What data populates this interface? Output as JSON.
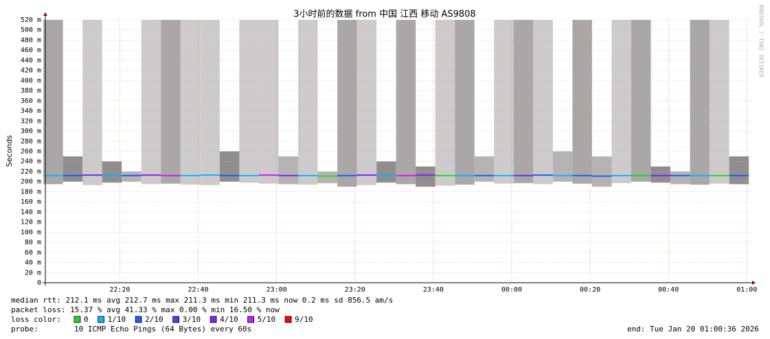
{
  "chart_data": {
    "type": "smoke",
    "title": "3小时前的数据 from 中国 江西 移动 AS9808",
    "y_label": "Seconds",
    "watermark": "RRDTOOL / TOBI OETIKER",
    "xlim": [
      "22:01",
      "01:01"
    ],
    "xticks": [
      "22:20",
      "22:40",
      "23:00",
      "23:20",
      "23:40",
      "00:00",
      "00:20",
      "00:40",
      "01:00"
    ],
    "ylim": [
      0,
      0.52
    ],
    "yticks": [
      0,
      {
        "value": 0.02,
        "label": "20 m"
      },
      {
        "value": 0.04,
        "label": "40 m"
      },
      {
        "value": 0.06,
        "label": "60 m"
      },
      {
        "value": 0.08,
        "label": "80 m"
      },
      {
        "value": 0.1,
        "label": "100 m"
      },
      {
        "value": 0.12,
        "label": "120 m"
      },
      {
        "value": 0.14,
        "label": "140 m"
      },
      {
        "value": 0.16,
        "label": "160 m"
      },
      {
        "value": 0.18,
        "label": "180 m"
      },
      {
        "value": 0.2,
        "label": "200 m"
      },
      {
        "value": 0.22,
        "label": "220 m"
      },
      {
        "value": 0.24,
        "label": "240 m"
      },
      {
        "value": 0.26,
        "label": "260 m"
      },
      {
        "value": 0.28,
        "label": "280 m"
      },
      {
        "value": 0.3,
        "label": "300 m"
      },
      {
        "value": 0.32,
        "label": "320 m"
      },
      {
        "value": 0.34,
        "label": "340 m"
      },
      {
        "value": 0.36,
        "label": "360 m"
      },
      {
        "value": 0.38,
        "label": "380 m"
      },
      {
        "value": 0.4,
        "label": "400 m"
      },
      {
        "value": 0.42,
        "label": "420 m"
      },
      {
        "value": 0.44,
        "label": "440 m"
      },
      {
        "value": 0.46,
        "label": "460 m"
      },
      {
        "value": 0.48,
        "label": "480 m"
      },
      {
        "value": 0.5,
        "label": "500 m"
      },
      {
        "value": 0.52,
        "label": "520 m"
      }
    ],
    "grid": true,
    "x": [
      "22:03",
      "22:08",
      "22:13",
      "22:18",
      "22:23",
      "22:28",
      "22:33",
      "22:38",
      "22:43",
      "22:48",
      "22:53",
      "22:58",
      "23:03",
      "23:08",
      "23:13",
      "23:18",
      "23:23",
      "23:28",
      "23:33",
      "23:38",
      "23:43",
      "23:48",
      "23:53",
      "23:58",
      "00:03",
      "00:08",
      "00:13",
      "00:18",
      "00:23",
      "00:28",
      "00:33",
      "00:38",
      "00:43",
      "00:48",
      "00:53",
      "00:58"
    ],
    "smoke_max": [
      0.52,
      0.25,
      0.52,
      0.24,
      0.22,
      0.52,
      0.52,
      0.52,
      0.52,
      0.26,
      0.52,
      0.52,
      0.25,
      0.52,
      0.22,
      0.52,
      0.52,
      0.24,
      0.52,
      0.23,
      0.52,
      0.52,
      0.25,
      0.52,
      0.52,
      0.52,
      0.26,
      0.52,
      0.25,
      0.52,
      0.52,
      0.23,
      0.22,
      0.52,
      0.52,
      0.25
    ],
    "smoke_min": [
      0.195,
      0.2,
      0.193,
      0.198,
      0.2,
      0.195,
      0.196,
      0.194,
      0.193,
      0.2,
      0.198,
      0.196,
      0.195,
      0.194,
      0.197,
      0.19,
      0.193,
      0.198,
      0.195,
      0.19,
      0.192,
      0.194,
      0.2,
      0.196,
      0.197,
      0.195,
      0.2,
      0.196,
      0.19,
      0.197,
      0.2,
      0.198,
      0.195,
      0.194,
      0.196,
      0.195
    ],
    "median": [
      0.212,
      0.212,
      0.213,
      0.212,
      0.212,
      0.213,
      0.212,
      0.212,
      0.213,
      0.212,
      0.212,
      0.213,
      0.212,
      0.212,
      0.211,
      0.212,
      0.213,
      0.212,
      0.212,
      0.213,
      0.212,
      0.212,
      0.212,
      0.212,
      0.212,
      0.213,
      0.212,
      0.212,
      0.211,
      0.212,
      0.212,
      0.212,
      0.212,
      0.212,
      0.212,
      0.212
    ],
    "median_colors": [
      "#0bb6ff",
      "#1e5cff",
      "#6a2bff",
      "#0bb6ff",
      "#1e5cff",
      "#8a1eff",
      "#c81eff",
      "#0bb6ff",
      "#0bb6ff",
      "#1e5cff",
      "#0bb6ff",
      "#c81eff",
      "#6a2bff",
      "#0bb6ff",
      "#2bd42b",
      "#1e5cff",
      "#6a2bff",
      "#0bb6ff",
      "#c81eff",
      "#8a1eff",
      "#2bd42b",
      "#0bb6ff",
      "#1e5cff",
      "#0bb6ff",
      "#6a2bff",
      "#1e5cff",
      "#0bb6ff",
      "#1e5cff",
      "#1e5cff",
      "#0bb6ff",
      "#2bd42b",
      "#6a2bff",
      "#1e5cff",
      "#0bb6ff",
      "#2bd42b",
      "#1e5cff"
    ],
    "stats": [
      "median rtt:  212.1 ms avg  212.7 ms max  211.3 ms min  211.3 ms now  0.2 ms sd  856.5   am/s",
      "packet loss: 15.37 % avg  41.33 % max  0.00 % min  16.50 % now"
    ],
    "legend_title": "loss color:",
    "legend": [
      {
        "name": "0",
        "color": "#2bd42b"
      },
      {
        "name": "1/10",
        "color": "#0bb6ff"
      },
      {
        "name": "2/10",
        "color": "#1e5cff"
      },
      {
        "name": "3/10",
        "color": "#6a2bff"
      },
      {
        "name": "4/10",
        "color": "#8a1eff"
      },
      {
        "name": "5/10",
        "color": "#c81eff"
      },
      {
        "name": "9/10",
        "color": "#ff0000"
      }
    ],
    "probe_label": "probe:",
    "probe": "10 ICMP Echo Pings (64 Bytes) every 60s",
    "end": "end: Tue Jan 20 01:00:36 2026"
  }
}
